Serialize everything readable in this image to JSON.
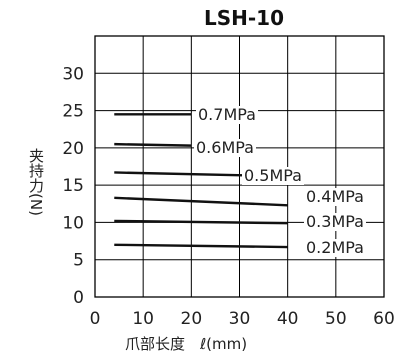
{
  "chart_data": {
    "type": "line",
    "title": "LSH-10",
    "xlabel": "爪部长度　ℓ(mm)",
    "ylabel": "夹持力(N)",
    "xlim": [
      0,
      60
    ],
    "ylim": [
      0,
      35
    ],
    "x_ticks": [
      "0",
      "10",
      "20",
      "30",
      "40",
      "50",
      "60"
    ],
    "y_ticks": [
      "0",
      "5",
      "10",
      "15",
      "20",
      "25",
      "30"
    ],
    "grid": true,
    "legend": "inline labels at right of lines",
    "series": [
      {
        "name": "0.7MPa",
        "x": [
          4,
          20
        ],
        "y": [
          24.5,
          24.5
        ]
      },
      {
        "name": "0.6MPa",
        "x": [
          4,
          20
        ],
        "y": [
          20.5,
          20.3
        ]
      },
      {
        "name": "0.5MPa",
        "x": [
          4,
          32
        ],
        "y": [
          16.7,
          16.3
        ]
      },
      {
        "name": "0.4MPa",
        "x": [
          4,
          40
        ],
        "y": [
          13.3,
          12.3
        ]
      },
      {
        "name": "0.3MPa",
        "x": [
          4,
          40
        ],
        "y": [
          10.2,
          9.9
        ]
      },
      {
        "name": "0.2MPa",
        "x": [
          4,
          40
        ],
        "y": [
          7.0,
          6.7
        ]
      }
    ]
  }
}
